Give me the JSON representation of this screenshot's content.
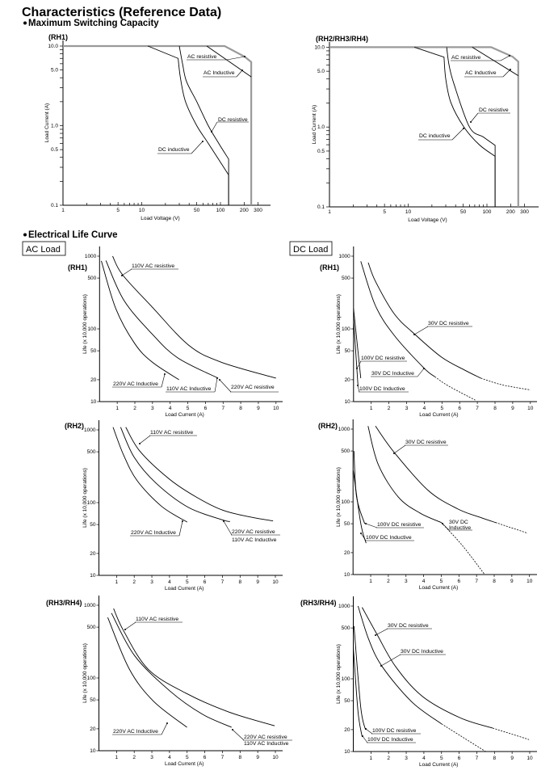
{
  "title": "Characteristics (Reference Data)",
  "section1": "Maximum Switching Capacity",
  "section2": "Electrical Life Curve",
  "ac_load": "AC Load",
  "dc_load": "DC Load",
  "chart_data": [
    {
      "id": "cap_rh1",
      "type": "line",
      "title": "(RH1)",
      "xlabel": "Load Voltage (V)",
      "ylabel": "Load Current (A)",
      "xscale": "log",
      "yscale": "log",
      "xlim": [
        1,
        430
      ],
      "ylim": [
        0.1,
        10
      ],
      "xticks": [
        "1",
        "5",
        "10",
        "50",
        "100",
        "200",
        "300"
      ],
      "yticks": [
        "0.1",
        "0.5",
        "1.0",
        "5.0",
        "10.0"
      ],
      "series": [
        {
          "name": "AC resistive",
          "style": "gray",
          "points": [
            [
              1,
              10
            ],
            [
              113,
              10
            ],
            [
              205,
              7.3
            ],
            [
              246,
              6.3
            ],
            [
              246,
              0.1
            ]
          ]
        },
        {
          "name": "AC Inductive",
          "points": [
            [
              67,
              10
            ],
            [
              246,
              4.1
            ]
          ]
        },
        {
          "name": "DC resistive",
          "smooth": true,
          "points": [
            [
              30,
              10
            ],
            [
              33,
              6
            ],
            [
              37,
              3.6
            ],
            [
              50,
              2
            ],
            [
              70,
              1
            ],
            [
              95,
              0.6
            ],
            [
              127,
              0.38
            ]
          ],
          "drop_to": 0.1
        },
        {
          "name": "DC inductive",
          "smooth": true,
          "lead": true,
          "points": [
            [
              12,
              10
            ],
            [
              29,
              7
            ],
            [
              31,
              4
            ],
            [
              36,
              2
            ],
            [
              50,
              1
            ],
            [
              70,
              0.6
            ],
            [
              127,
              0.24
            ]
          ],
          "drop_to": 0.1
        }
      ]
    },
    {
      "id": "cap_rh2",
      "type": "line",
      "title": "(RH2/RH3/RH4)",
      "xlabel": "Load Voltage (V)",
      "ylabel": "Load Current (A)",
      "xscale": "log",
      "yscale": "log",
      "xlim": [
        1,
        430
      ],
      "ylim": [
        0.1,
        10
      ],
      "xticks": [
        "1",
        "5",
        "10",
        "50",
        "100",
        "200",
        "300"
      ],
      "yticks": [
        "0.1",
        "0.5",
        "1.0",
        "5.0",
        "10.0"
      ],
      "series": [
        {
          "name": "AC resistive",
          "style": "gray",
          "points": [
            [
              1,
              10
            ],
            [
              113,
              10
            ],
            [
              212,
              7.6
            ],
            [
              250,
              6.6
            ],
            [
              250,
              0.1
            ]
          ]
        },
        {
          "name": "AC Inductive",
          "points": [
            [
              65,
              10
            ],
            [
              250,
              4.4
            ]
          ]
        },
        {
          "name": "DC resistive",
          "smooth": true,
          "points": [
            [
              30.8,
              10
            ],
            [
              33,
              6
            ],
            [
              38,
              3.5
            ],
            [
              60,
              1
            ],
            [
              90,
              0.75
            ],
            [
              127,
              0.59
            ]
          ],
          "drop_to": 0.1
        },
        {
          "name": "DC inductive",
          "smooth": true,
          "lead": true,
          "points": [
            [
              12,
              10
            ],
            [
              28.5,
              7.5
            ],
            [
              30,
              4
            ],
            [
              35,
              2
            ],
            [
              51,
              1
            ],
            [
              80,
              0.6
            ],
            [
              127,
              0.43
            ]
          ],
          "drop_to": 0.1
        }
      ]
    },
    {
      "id": "life_rh1_ac",
      "type": "line",
      "title": "(RH1)",
      "xlabel": "Load Current (A)",
      "ylabel": "Life (x 10,000 operations)",
      "xlim": [
        0,
        10.5
      ],
      "ylim": [
        10,
        1000
      ],
      "yscale": "log",
      "xticks": [
        "1",
        "2",
        "3",
        "4",
        "5",
        "6",
        "7",
        "8",
        "9",
        "10"
      ],
      "yticks": [
        "10",
        "20",
        "50",
        "100",
        "500",
        "1000"
      ],
      "labels": [
        "110V AC resistive",
        "220V AC Inductive",
        "110V AC Inductive",
        "220V AC resistive"
      ],
      "series": [
        {
          "name": "110V AC resistive",
          "points": [
            [
              0.74,
              1000
            ],
            [
              1.3,
              555
            ],
            [
              2.98,
              200
            ],
            [
              5.04,
              60
            ],
            [
              6.87,
              35
            ],
            [
              10,
              21
            ]
          ]
        },
        {
          "name": "110V AC Inductive / 220V AC resistive",
          "points": [
            [
              0.36,
              870
            ],
            [
              1.38,
              247
            ],
            [
              2.98,
              85
            ],
            [
              4.43,
              40
            ],
            [
              6.72,
              21
            ]
          ]
        },
        {
          "name": "220V AC Inductive",
          "points": [
            [
              0.1,
              860
            ],
            [
              0.92,
              190
            ],
            [
              1.99,
              63
            ],
            [
              2.98,
              35
            ],
            [
              4.5,
              20
            ]
          ]
        }
      ]
    },
    {
      "id": "life_rh1_dc",
      "type": "line",
      "title": "(RH1)",
      "xlabel": "Load Current (A)",
      "ylabel": "Life (x 10,000 operations)",
      "xlim": [
        0,
        10.5
      ],
      "ylim": [
        10,
        1000
      ],
      "yscale": "log",
      "xticks": [
        "1",
        "2",
        "3",
        "4",
        "5",
        "6",
        "7",
        "8",
        "9",
        "10"
      ],
      "yticks": [
        "10",
        "20",
        "50",
        "100",
        "500",
        "1000"
      ],
      "labels": [
        "30V DC resistive",
        "100V DC resistive",
        "30V DC Inductive",
        "100V DC Inductive"
      ],
      "series": [
        {
          "name": "30V DC resistive",
          "dashed_from": 6,
          "points": [
            [
              0.83,
              815
            ],
            [
              1.24,
              450
            ],
            [
              2.31,
              160
            ],
            [
              3.45,
              85
            ],
            [
              4.97,
              41
            ],
            [
              6.3,
              27
            ],
            [
              7.2,
              21
            ],
            [
              8.4,
              17
            ],
            [
              10,
              14.5
            ]
          ]
        },
        {
          "name": "30V DC Inductive",
          "dashed_from": 4,
          "points": [
            [
              0.41,
              850
            ],
            [
              1.24,
              208
            ],
            [
              2.31,
              81
            ],
            [
              3.98,
              29
            ],
            [
              4.6,
              22
            ],
            [
              5.35,
              16.5
            ],
            [
              6.88,
              10.5
            ]
          ]
        },
        {
          "name": "100V DC resistive",
          "points": [
            [
              0,
              190
            ],
            [
              0.41,
              21
            ]
          ]
        },
        {
          "name": "100V DC Inductive",
          "points": [
            [
              0,
              135
            ],
            [
              0.25,
              17
            ]
          ]
        }
      ]
    },
    {
      "id": "life_rh2_ac",
      "type": "line",
      "title": "(RH2)",
      "xlabel": "Load Current (A)",
      "ylabel": "Life (x 10,000 operations)",
      "xlim": [
        0,
        10.5
      ],
      "ylim": [
        10,
        1000
      ],
      "yscale": "log",
      "xticks": [
        "1",
        "2",
        "3",
        "4",
        "5",
        "6",
        "7",
        "8",
        "9",
        "10"
      ],
      "yticks": [
        "10",
        "20",
        "50",
        "100",
        "500",
        "1000"
      ],
      "labels": [
        "110V AC resistive",
        "220V AC Inductive",
        "220V AC resistive",
        "110V AC Inductive"
      ],
      "series": [
        {
          "name": "110V AC resistive",
          "points": [
            [
              1.52,
              1090
            ],
            [
              2.33,
              507
            ],
            [
              4,
              210
            ],
            [
              5.5,
              120
            ],
            [
              7,
              79
            ],
            [
              8.5,
              64
            ],
            [
              9.87,
              56
            ]
          ]
        },
        {
          "name": "220V AC resistive / 110V AC Inductive",
          "points": [
            [
              1.23,
              1090
            ],
            [
              2,
              420
            ],
            [
              3.24,
              185
            ],
            [
              5.07,
              86
            ],
            [
              7,
              58
            ],
            [
              7.43,
              55
            ]
          ]
        },
        {
          "name": "220V AC Inductive",
          "points": [
            [
              0.8,
              1090
            ],
            [
              1.4,
              450
            ],
            [
              2.17,
              200
            ],
            [
              3.55,
              89
            ],
            [
              5,
              54
            ]
          ]
        }
      ]
    },
    {
      "id": "life_rh2_dc",
      "type": "line",
      "title": "(RH2)",
      "xlabel": "Load Current (A)",
      "ylabel": "Life (x 10,000 operations)",
      "xlim": [
        0,
        10.5
      ],
      "ylim": [
        10,
        1000
      ],
      "yscale": "log",
      "xticks": [
        "1",
        "2",
        "3",
        "4",
        "5",
        "6",
        "7",
        "8",
        "9",
        "10"
      ],
      "yticks": [
        "10",
        "20",
        "50",
        "100",
        "500",
        "1000"
      ],
      "labels": [
        "30V DC resistive",
        "100V DC resistive",
        "30V DC",
        "Inductive",
        "100V DC Inductive"
      ],
      "series": [
        {
          "name": "30V DC resistive",
          "dashed_from": 5,
          "points": [
            [
              1.27,
              1100
            ],
            [
              2.34,
              476
            ],
            [
              4.25,
              144
            ],
            [
              5.93,
              80
            ],
            [
              7.3,
              60
            ],
            [
              8.07,
              52
            ],
            [
              9.9,
              37
            ]
          ]
        },
        {
          "name": "30V DC Inductive",
          "dashed_from": 4,
          "points": [
            [
              0.85,
              1100
            ],
            [
              1.43,
              325
            ],
            [
              2.57,
              116
            ],
            [
              3.8,
              70
            ],
            [
              5,
              52
            ],
            [
              6.2,
              25
            ],
            [
              7.46,
              10
            ]
          ]
        },
        {
          "name": "100V DC resistive",
          "points": [
            [
              0.05,
              500
            ],
            [
              0.2,
              117
            ],
            [
              0.66,
              50
            ]
          ]
        },
        {
          "name": "100V DC Inductive",
          "points": [
            [
              0.01,
              270
            ],
            [
              0.44,
              50
            ],
            [
              0.74,
              27
            ]
          ]
        }
      ]
    },
    {
      "id": "life_rh3_ac",
      "type": "line",
      "title": "(RH3/RH4)",
      "xlabel": "Load Current (A)",
      "ylabel": "Life (x 10,000 operations)",
      "xlim": [
        0,
        10.5
      ],
      "ylim": [
        10,
        1000
      ],
      "yscale": "log",
      "xticks": [
        "1",
        "2",
        "3",
        "4",
        "5",
        "6",
        "7",
        "8",
        "9",
        "10"
      ],
      "yticks": [
        "10",
        "20",
        "50",
        "100",
        "500",
        "1000"
      ],
      "labels": [
        "110V AC resistive",
        "220V AC Inductive",
        "220V AC resistive",
        "110V AC Inductive"
      ],
      "series": [
        {
          "name": "110V AC resistive",
          "points": [
            [
              0.83,
              900
            ],
            [
              1.41,
              440
            ],
            [
              2.79,
              132
            ],
            [
              4.92,
              62
            ],
            [
              7.37,
              34
            ],
            [
              9.96,
              22
            ]
          ]
        },
        {
          "name": "220V AC resistive / 110V AC Inductive",
          "points": [
            [
              0.71,
              780
            ],
            [
              2.02,
              203
            ],
            [
              4,
              67
            ],
            [
              5.84,
              32
            ],
            [
              7.52,
              21
            ]
          ]
        },
        {
          "name": "220V AC Inductive",
          "points": [
            [
              0.5,
              680
            ],
            [
              1.72,
              133
            ],
            [
              3.09,
              48
            ],
            [
              4.99,
              21
            ]
          ]
        }
      ]
    },
    {
      "id": "life_rh3_dc",
      "type": "line",
      "title": "(RH3/RH4)",
      "xlabel": "Load Current (A)",
      "ylabel": "Life (x 10,000 operations)",
      "xlim": [
        0,
        10.5
      ],
      "ylim": [
        10,
        1000
      ],
      "yscale": "log",
      "xticks": [
        "1",
        "2",
        "3",
        "4",
        "5",
        "6",
        "7",
        "8",
        "9",
        "10"
      ],
      "yticks": [
        "10",
        "20",
        "50",
        "100",
        "500",
        "1000"
      ],
      "labels": [
        "30V DC resistive",
        "30V DC Inductive",
        "100V DC resistive",
        "100V DC Inductive"
      ],
      "series": [
        {
          "name": "30V DC resistive",
          "dashed_from": 5,
          "points": [
            [
              0.5,
              960
            ],
            [
              1.34,
              410
            ],
            [
              2.4,
              147
            ],
            [
              3.93,
              57
            ],
            [
              6.07,
              29
            ],
            [
              7.9,
              21
            ],
            [
              9.96,
              14.6
            ]
          ]
        },
        {
          "name": "30V DC Inductive",
          "dashed_from": 4,
          "points": [
            [
              0.27,
              1000
            ],
            [
              0.88,
              345
            ],
            [
              1.64,
              147
            ],
            [
              3.32,
              48
            ],
            [
              5,
              24
            ],
            [
              7.5,
              10
            ]
          ]
        },
        {
          "name": "100V DC resistive",
          "points": [
            [
              0.04,
              530
            ],
            [
              0.42,
              41
            ],
            [
              0.69,
              20
            ]
          ]
        },
        {
          "name": "100V DC Inductive",
          "points": [
            [
              0,
              270
            ],
            [
              0.27,
              35
            ],
            [
              0.5,
              16
            ]
          ]
        }
      ]
    }
  ]
}
